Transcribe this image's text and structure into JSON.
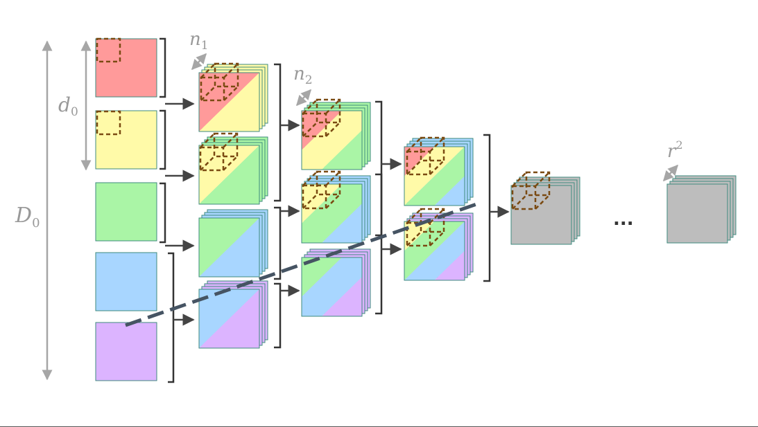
{
  "labels": {
    "n1": "n",
    "n1_sub": "1",
    "n2": "n",
    "n2_sub": "2",
    "d0": "d",
    "d0_sub": "0",
    "D0": "D",
    "D0_sub": "0",
    "r2": "r",
    "r2_sup": "2",
    "ellipsis": "..."
  },
  "colors": {
    "red": "#ff9a9a",
    "yellow": "#fffaa8",
    "green": "#aaf5a6",
    "blue": "#a8d6ff",
    "purple": "#dcb4ff",
    "gray": "#bdbdbd",
    "border": "#3e8a7e",
    "bracket": "#333333",
    "arrow": "#444444",
    "kernel": "#7a4a12",
    "dashed_line": "#465463",
    "dimension": "#a6a6a6"
  },
  "stages": [
    {
      "name": "input-channels",
      "blocks": [
        [
          "red"
        ],
        [
          "yellow"
        ],
        [
          "green"
        ],
        [
          "blue"
        ],
        [
          "purple"
        ]
      ]
    },
    {
      "name": "layer-1",
      "blocks": [
        [
          "red",
          "yellow"
        ],
        [
          "yellow",
          "green"
        ],
        [
          "green",
          "blue"
        ],
        [
          "blue",
          "purple"
        ]
      ]
    },
    {
      "name": "layer-2",
      "blocks": [
        [
          "red",
          "yellow",
          "green"
        ],
        [
          "yellow",
          "green",
          "blue"
        ],
        [
          "green",
          "blue",
          "purple"
        ]
      ]
    },
    {
      "name": "layer-3",
      "blocks": [
        [
          "red",
          "yellow",
          "green",
          "blue"
        ],
        [
          "yellow",
          "green",
          "blue",
          "purple"
        ]
      ]
    },
    {
      "name": "layer-4",
      "blocks": [
        [
          "gray"
        ]
      ]
    },
    {
      "name": "output",
      "blocks": [
        [
          "gray"
        ]
      ]
    }
  ]
}
